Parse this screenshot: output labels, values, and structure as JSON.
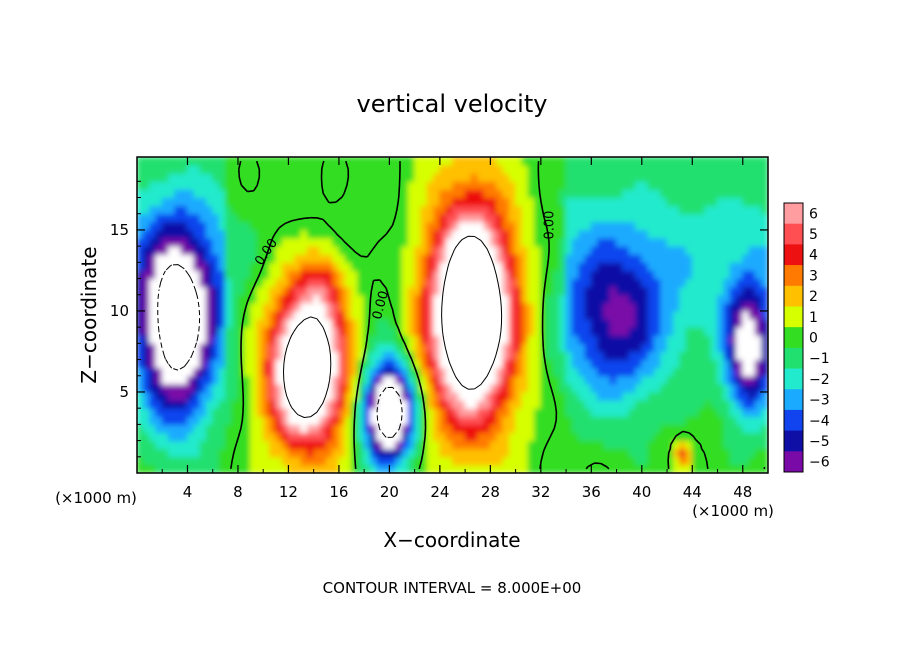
{
  "chart_data": {
    "type": "heatmap",
    "title": "vertical velocity",
    "xlabel": "X−coordinate",
    "ylabel": "Z−coordinate",
    "x_unit_left": "(×1000 m)",
    "x_unit_right": "(×1000 m)",
    "footer": "CONTOUR INTERVAL = 8.000E+00",
    "xlim": [
      0,
      50
    ],
    "ylim": [
      0,
      19.5
    ],
    "x_ticks": [
      "4",
      "8",
      "12",
      "16",
      "20",
      "24",
      "28",
      "32",
      "36",
      "40",
      "44",
      "48"
    ],
    "x_tick_values": [
      4,
      8,
      12,
      16,
      20,
      24,
      28,
      32,
      36,
      40,
      44,
      48
    ],
    "y_ticks": [
      "5",
      "10",
      "15"
    ],
    "y_tick_values": [
      5,
      10,
      15
    ],
    "contour_labels": [
      {
        "text": "0.00",
        "x": 10.5,
        "y": 13.5,
        "angle": -55
      },
      {
        "text": "0.00",
        "x": 19.6,
        "y": 10.3,
        "angle": -75
      },
      {
        "text": "0.00",
        "x": 33.0,
        "y": 15.3,
        "angle": -90
      }
    ],
    "colorbar": {
      "labels": [
        "6",
        "5",
        "4",
        "3",
        "2",
        "1",
        "0",
        "−1",
        "−2",
        "−3",
        "−4",
        "−5",
        "−6"
      ],
      "values": [
        6,
        5,
        4,
        3,
        2,
        1,
        0,
        -1,
        -2,
        -3,
        -4,
        -5,
        -6
      ],
      "colors": [
        "#ff9da0",
        "#ff4f52",
        "#ee1111",
        "#ff7a00",
        "#ffc000",
        "#d6ff00",
        "#33dd22",
        "#22e070",
        "#22eacc",
        "#1aaaff",
        "#1144ee",
        "#0f0fa6",
        "#7a0aa8"
      ]
    },
    "field_features": [
      {
        "name": "updraft",
        "x": 13.5,
        "z": 6.5,
        "sx": 3.0,
        "sz": 4.8,
        "amp": 12
      },
      {
        "name": "updraft",
        "x": 26.5,
        "z": 10.0,
        "sx": 3.5,
        "sz": 6.8,
        "amp": 13
      },
      {
        "name": "updraft",
        "x": 14.8,
        "z": 11.8,
        "sx": 1.8,
        "sz": 2.0,
        "amp": 2.5
      },
      {
        "name": "updraft",
        "x": 43.3,
        "z": 1.2,
        "sx": 0.6,
        "sz": 0.8,
        "amp": 4
      },
      {
        "name": "downdraft",
        "x": 3.2,
        "z": 9.0,
        "sx": 3.0,
        "sz": 6.0,
        "amp": -9
      },
      {
        "name": "downdraft",
        "x": 20.0,
        "z": 3.8,
        "sx": 2.0,
        "sz": 3.0,
        "amp": -11
      },
      {
        "name": "downdraft",
        "x": 38.0,
        "z": 9.0,
        "sx": 4.0,
        "sz": 5.0,
        "amp": -4.5
      },
      {
        "name": "downdraft",
        "x": 48.5,
        "z": 7.5,
        "sx": 1.8,
        "sz": 4.0,
        "amp": -7
      }
    ]
  }
}
